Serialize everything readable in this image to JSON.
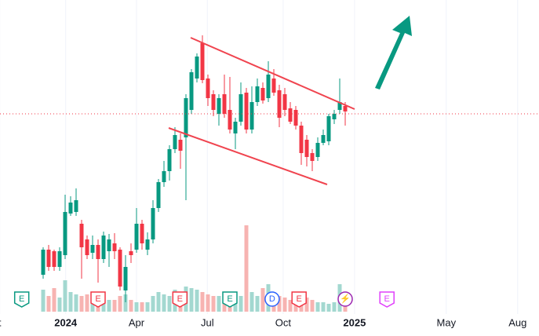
{
  "chart_data": {
    "type": "candlestick",
    "x": [
      0,
      1,
      2,
      3,
      4,
      5,
      6,
      7,
      8,
      9,
      10,
      11,
      12,
      13,
      14,
      15,
      16,
      17,
      18,
      19,
      20,
      21,
      22,
      23,
      24,
      25,
      26,
      27,
      28,
      29,
      30,
      31,
      32,
      33,
      34,
      35,
      36,
      37,
      38,
      39,
      40,
      41,
      42,
      43,
      44,
      45,
      46,
      47,
      48,
      49,
      50,
      51,
      52,
      53,
      54,
      55
    ],
    "open": [
      50,
      82,
      80,
      60,
      75,
      128,
      130,
      115,
      95,
      78,
      88,
      70,
      80,
      90,
      82,
      30,
      80,
      82,
      115,
      82,
      95,
      135,
      168,
      182,
      210,
      222,
      225,
      260,
      300,
      345,
      300,
      280,
      255,
      280,
      260,
      230,
      245,
      282,
      235,
      270,
      288,
      275,
      300,
      285,
      280,
      262,
      260,
      240,
      222,
      205,
      200,
      218,
      220,
      248,
      260,
      265
    ],
    "high": [
      85,
      88,
      82,
      85,
      152,
      150,
      160,
      120,
      100,
      100,
      95,
      105,
      102,
      103,
      85,
      75,
      90,
      135,
      120,
      104,
      145,
      172,
      195,
      215,
      238,
      230,
      280,
      312,
      332,
      355,
      305,
      285,
      280,
      305,
      302,
      250,
      295,
      288,
      290,
      300,
      295,
      322,
      312,
      292,
      288,
      270,
      265,
      245,
      228,
      210,
      225,
      235,
      255,
      260,
      300,
      270
    ],
    "low": [
      45,
      55,
      55,
      55,
      70,
      125,
      125,
      45,
      70,
      70,
      40,
      65,
      60,
      70,
      30,
      15,
      65,
      78,
      82,
      75,
      90,
      130,
      162,
      170,
      205,
      185,
      145,
      255,
      295,
      294,
      265,
      252,
      240,
      250,
      230,
      210,
      240,
      230,
      230,
      265,
      268,
      270,
      278,
      238,
      252,
      242,
      235,
      190,
      188,
      182,
      195,
      215,
      215,
      242,
      255,
      240
    ],
    "close": [
      82,
      60,
      60,
      80,
      130,
      142,
      145,
      85,
      75,
      88,
      70,
      100,
      95,
      80,
      35,
      60,
      75,
      115,
      90,
      95,
      135,
      168,
      182,
      210,
      228,
      208,
      275,
      308,
      328,
      298,
      275,
      260,
      275,
      255,
      235,
      245,
      280,
      235,
      270,
      290,
      272,
      305,
      282,
      250,
      260,
      245,
      240,
      205,
      200,
      195,
      218,
      228,
      252,
      255,
      270,
      258
    ],
    "volume": [
      28,
      20,
      30,
      18,
      40,
      25,
      22,
      20,
      22,
      18,
      18,
      15,
      15,
      15,
      20,
      22,
      15,
      12,
      12,
      12,
      20,
      25,
      22,
      20,
      28,
      25,
      32,
      30,
      28,
      25,
      22,
      20,
      20,
      18,
      20,
      18,
      20,
      110,
      25,
      20,
      30,
      35,
      25,
      20,
      18,
      15,
      15,
      20,
      18,
      15,
      12,
      12,
      10,
      12,
      35,
      20
    ],
    "xlim": [
      -7.857,
      90.286
    ],
    "ylim": [
      0,
      400
    ],
    "volume_lim": [
      0,
      120
    ],
    "xticks": [
      {
        "value": -7.9,
        "label": "t"
      },
      {
        "value": 4.1,
        "label": "2024",
        "bold": true
      },
      {
        "value": 17,
        "label": "Apr"
      },
      {
        "value": 29.9,
        "label": "Jul"
      },
      {
        "value": 43.7,
        "label": "Oct"
      },
      {
        "value": 56.7,
        "label": "2025",
        "bold": true
      },
      {
        "value": 73.4,
        "label": "May"
      },
      {
        "value": 86.4,
        "label": "Aug"
      }
    ],
    "up_color": "#089981",
    "down_color": "#f23645",
    "up_volume_color": "#a3d8d0",
    "down_volume_color": "#f7b3b1",
    "grid": true,
    "price_line": {
      "value": 255,
      "color": "#f23645"
    },
    "trendlines": [
      {
        "x": [
          26.86,
          56.71
        ],
        "y": [
          352,
          261
        ],
        "color": "#f0444f"
      },
      {
        "x": [
          22.86,
          51.71
        ],
        "y": [
          237,
          165
        ],
        "color": "#f0444f"
      }
    ],
    "events": [
      {
        "x": -3.9,
        "label": "E",
        "color": "#089981"
      },
      {
        "x": 10,
        "label": "E",
        "color": "#f23645"
      },
      {
        "x": 24.9,
        "label": "E",
        "color": "#f23645"
      },
      {
        "x": 34,
        "label": "E",
        "color": "#089981"
      },
      {
        "x": 41.7,
        "label": "D",
        "color": "#2962ff"
      },
      {
        "x": 46.6,
        "label": "E",
        "color": "#f23645"
      },
      {
        "x": 55,
        "label": "⚡",
        "color": "#9c27b0"
      },
      {
        "x": 62.6,
        "label": "E",
        "color": "#e040fb"
      }
    ]
  }
}
